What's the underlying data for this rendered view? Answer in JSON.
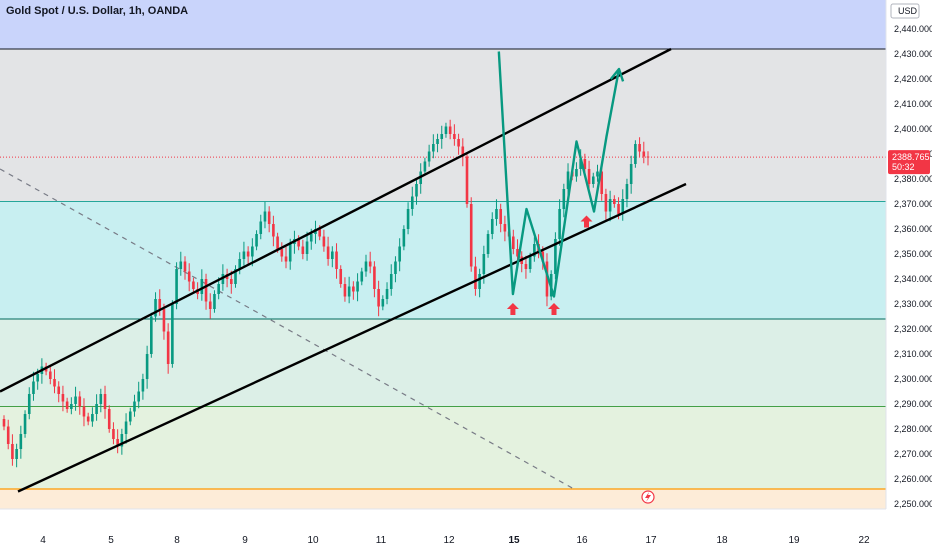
{
  "header": {
    "title": "Gold Spot / U.S. Dollar, 1h, OANDA"
  },
  "price_scale": {
    "currency": "USD",
    "current_price": "2388.765",
    "countdown": "50:32",
    "current_price_color": "#f23645"
  },
  "colors": {
    "up": "#089981",
    "down": "#f23645",
    "zone_blue": "#c9d4fb",
    "zone_gray": "#e3e4e6",
    "zone_cyan": "#c8eff1",
    "zone_cyan_line": "#26a69a",
    "zone_green": "#dcefe7",
    "zone_lightgreen": "#e4f2df",
    "zone_orange": "#fdecd8",
    "orange_line": "#ff9800",
    "channel": "#000000",
    "pattern": "#089981",
    "marker": "#f23645"
  },
  "chart_data": {
    "type": "candlestick",
    "title": "Gold Spot / U.S. Dollar, 1h, OANDA",
    "ylim": [
      2248,
      2445
    ],
    "y_ticks": [
      2250,
      2260,
      2270,
      2280,
      2290,
      2300,
      2310,
      2320,
      2330,
      2340,
      2350,
      2360,
      2370,
      2380,
      2390,
      2400,
      2410,
      2420,
      2430,
      2440
    ],
    "x_ticks": [
      "4",
      "5",
      "8",
      "9",
      "10",
      "11",
      "12",
      "15",
      "16",
      "17",
      "18",
      "19",
      "22"
    ],
    "x_ticks_bold": [
      "15"
    ],
    "horizontal_levels": [
      2432,
      2371,
      2324,
      2289,
      2256
    ],
    "current_price": 2388.765,
    "closes": [
      2281,
      2274,
      2268,
      2272,
      2278,
      2286,
      2294,
      2299,
      2302,
      2305,
      2303,
      2300,
      2297,
      2294,
      2291,
      2288,
      2290,
      2293,
      2289,
      2285,
      2283,
      2286,
      2290,
      2294,
      2288,
      2280,
      2276,
      2273,
      2278,
      2283,
      2287,
      2291,
      2295,
      2300,
      2310,
      2325,
      2332,
      2328,
      2319,
      2306,
      2330,
      2344,
      2347,
      2343,
      2339,
      2336,
      2334,
      2340,
      2331,
      2328,
      2334,
      2338,
      2342,
      2340,
      2338,
      2344,
      2348,
      2351,
      2349,
      2353,
      2358,
      2363,
      2367,
      2362,
      2357,
      2352,
      2349,
      2347,
      2354,
      2356,
      2353,
      2350,
      2355,
      2358,
      2360,
      2357,
      2353,
      2348,
      2351,
      2344,
      2338,
      2333,
      2337,
      2335,
      2339,
      2343,
      2347,
      2345,
      2336,
      2329,
      2332,
      2336,
      2342,
      2347,
      2353,
      2360,
      2368,
      2373,
      2378,
      2383,
      2387,
      2391,
      2394,
      2396,
      2398,
      2401,
      2398,
      2396,
      2393,
      2389,
      2370,
      2345,
      2336,
      2342,
      2350,
      2358,
      2364,
      2368,
      2362,
      2359,
      2357,
      2352,
      2349,
      2346,
      2344,
      2349,
      2354,
      2351,
      2347,
      2333,
      2342,
      2356,
      2368,
      2376,
      2383,
      2381,
      2384,
      2388,
      2384,
      2378,
      2381,
      2383,
      2374,
      2367,
      2372,
      2370,
      2366,
      2372,
      2378,
      2386,
      2394,
      2391,
      2389,
      2388.765
    ],
    "channel_upper": [
      [
        0,
        2295
      ],
      [
        16.6,
        2432
      ]
    ],
    "channel_lower": [
      [
        0.4,
        2255
      ],
      [
        17.0,
        2378
      ]
    ],
    "dashed_trend": [
      [
        0,
        2384
      ],
      [
        16.2,
        2256
      ]
    ],
    "pattern_points": [
      [
        14.3,
        2431
      ],
      [
        14.95,
        2334
      ],
      [
        15.25,
        2368
      ],
      [
        15.8,
        2333
      ],
      [
        16.25,
        2395
      ],
      [
        16.6,
        2367
      ],
      [
        16.85,
        2397
      ],
      [
        17.1,
        2424
      ]
    ],
    "arrow_markers": [
      [
        14.95,
        2328
      ],
      [
        15.8,
        2328
      ],
      [
        16.45,
        2363
      ]
    ]
  }
}
